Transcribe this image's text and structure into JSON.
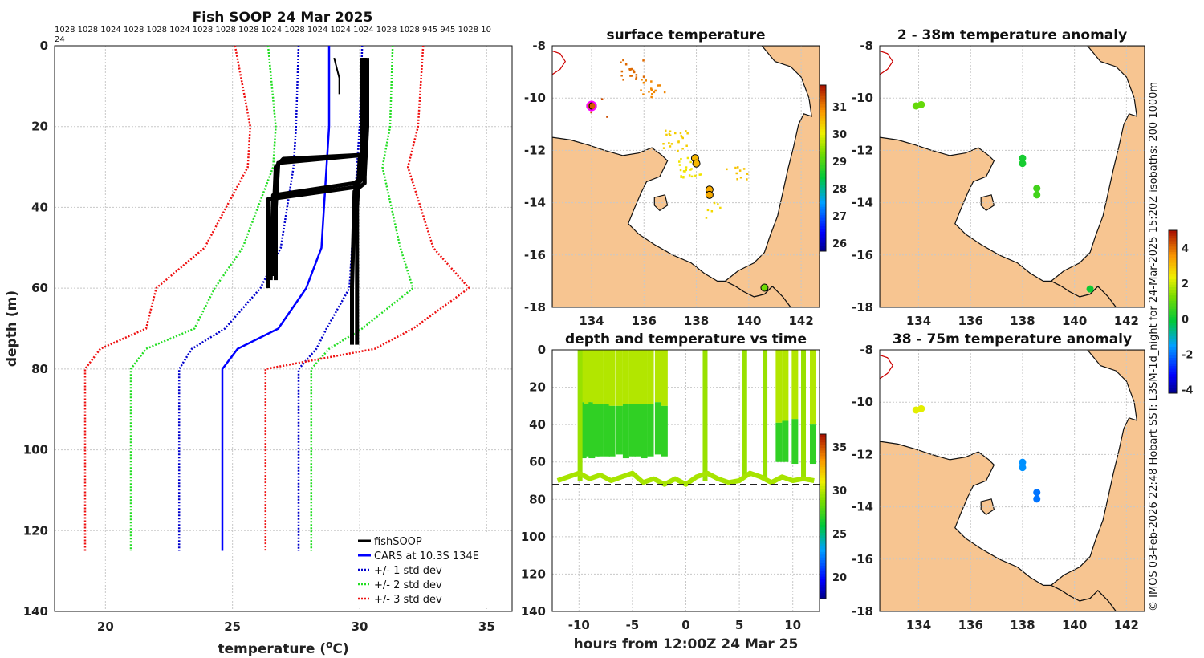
{
  "header": {
    "title": "Fish SOOP 24 Mar 2025",
    "pressure_line1": "1028 1028 1024 1028 1028 1024 1028 1028 1028 1024 1028 1024 1024 1024 1028 1028 945 945 1028 10",
    "pressure_line2": "24"
  },
  "credit": "© IMOS 03-Feb-2026 22:48 Hobart SST: L3SM-1d_night for 24-Mar-2025 15:20Z isobaths: 200  1000m",
  "colors": {
    "fishsoop": "#000000",
    "cars": "#0000ff",
    "std1": "#0000cc",
    "std2": "#22dd22",
    "std3": "#ee1111",
    "land": "#f7c591"
  },
  "chart_data": [
    {
      "id": "profile",
      "type": "line",
      "title": "Fish SOOP 24 Mar 2025",
      "xlabel_main": "temperature (",
      "xlabel_sup": "o",
      "xlabel_end": "C)",
      "ylabel": "depth (m)",
      "xlim": [
        18,
        36
      ],
      "ylim": [
        0,
        140
      ],
      "xticks": [
        20,
        25,
        30,
        35
      ],
      "yticks": [
        0,
        20,
        40,
        60,
        80,
        100,
        120,
        140
      ],
      "legend": [
        "fishSOOP",
        "CARS at 10.3S 134E",
        "+/- 1 std dev",
        "+/- 2 std dev",
        "+/- 3 std dev"
      ],
      "legend_position": "bottom-right",
      "depth_levels": [
        0,
        20,
        30,
        50,
        60,
        70,
        75,
        80,
        125
      ],
      "series": [
        {
          "name": "CARS at 10.3S 134E",
          "values": [
            28.8,
            28.8,
            28.7,
            28.5,
            27.9,
            26.8,
            25.2,
            24.6,
            24.6
          ]
        },
        {
          "name": "+1 std dev",
          "values": [
            30.1,
            30.0,
            29.9,
            29.7,
            29.6,
            28.7,
            28.3,
            27.6,
            27.6
          ]
        },
        {
          "name": "-1 std dev",
          "values": [
            27.6,
            27.5,
            27.4,
            26.9,
            26.1,
            24.7,
            23.4,
            22.9,
            22.9
          ]
        },
        {
          "name": "+2 std dev",
          "values": [
            31.3,
            31.2,
            30.9,
            31.6,
            32.1,
            30.1,
            28.8,
            28.1,
            28.1
          ]
        },
        {
          "name": "-2 std dev",
          "values": [
            26.4,
            26.7,
            26.6,
            25.4,
            24.3,
            23.5,
            21.6,
            21.0,
            21.0
          ]
        },
        {
          "name": "+3 std dev",
          "values": [
            32.5,
            32.3,
            31.9,
            32.9,
            34.3,
            32.1,
            30.6,
            26.3,
            26.3
          ]
        },
        {
          "name": "-3 std dev",
          "values": [
            25.1,
            25.7,
            25.6,
            23.9,
            22.0,
            21.6,
            19.8,
            19.2,
            19.2
          ]
        }
      ],
      "fishsoop_profiles": [
        {
          "temps": [
            30.1,
            30.1,
            30.1,
            30.0,
            29.9,
            29.9,
            29.9
          ],
          "depths": [
            3,
            20,
            26,
            28,
            40,
            60,
            74
          ]
        },
        {
          "temps": [
            30.2,
            30.2,
            30.1,
            27.0,
            26.7,
            26.6,
            26.6
          ],
          "depths": [
            3,
            20,
            27,
            28,
            30,
            45,
            57
          ]
        },
        {
          "temps": [
            30.1,
            30.2,
            30.2,
            26.8,
            26.7,
            26.7
          ],
          "depths": [
            3,
            20,
            27,
            29,
            40,
            58
          ]
        },
        {
          "temps": [
            30.2,
            30.2,
            30.1,
            29.8,
            26.4,
            26.4
          ],
          "depths": [
            3,
            20,
            33,
            35,
            38,
            60
          ]
        },
        {
          "temps": [
            30.3,
            30.3,
            30.2,
            29.8,
            26.6,
            26.5
          ],
          "depths": [
            3,
            20,
            32,
            34,
            37,
            58
          ]
        },
        {
          "temps": [
            30.2,
            30.2,
            30.2,
            29.8,
            29.7,
            29.7
          ],
          "depths": [
            3,
            20,
            34,
            36,
            60,
            74
          ]
        },
        {
          "temps": [
            29.0,
            29.2,
            29.2
          ],
          "depths": [
            3,
            8,
            12
          ]
        }
      ]
    },
    {
      "id": "sst_map",
      "type": "scatter",
      "title": "surface temperature",
      "xlim": [
        132.5,
        142.7
      ],
      "ylim": [
        -18,
        -8
      ],
      "xticks": [
        134,
        136,
        138,
        140,
        142
      ],
      "yticks": [
        -8,
        -10,
        -12,
        -14,
        -16,
        -18
      ],
      "colorbar": {
        "min": 25.7,
        "max": 31.8,
        "ticks": [
          26,
          27,
          28,
          29,
          30,
          31
        ]
      },
      "points": [
        {
          "lon": 133.95,
          "lat": -10.3,
          "value": 31.3
        },
        {
          "lon": 134.05,
          "lat": -10.3,
          "value": 31.3
        },
        {
          "lon": 137.95,
          "lat": -12.3,
          "value": 30.6
        },
        {
          "lon": 138.0,
          "lat": -12.5,
          "value": 30.6
        },
        {
          "lon": 138.5,
          "lat": -13.5,
          "value": 30.7
        },
        {
          "lon": 138.5,
          "lat": -13.7,
          "value": 30.7
        },
        {
          "lon": 140.6,
          "lat": -17.25,
          "value": 29.3
        }
      ]
    },
    {
      "id": "anom_2_38",
      "type": "scatter",
      "title": "2 - 38m temperature anomaly",
      "xlim": [
        132.5,
        142.7
      ],
      "ylim": [
        -18,
        -8
      ],
      "xticks": [
        134,
        136,
        138,
        140,
        142
      ],
      "yticks": [
        -8,
        -10,
        -12,
        -14,
        -16,
        -18
      ],
      "colorbar": {
        "min": -4.2,
        "max": 5.0,
        "ticks": [
          -4,
          -2,
          0,
          2,
          4
        ]
      },
      "points": [
        {
          "lon": 133.9,
          "lat": -10.3,
          "value": 1.1
        },
        {
          "lon": 134.1,
          "lat": -10.25,
          "value": 1.1
        },
        {
          "lon": 138.0,
          "lat": -12.3,
          "value": 0.2
        },
        {
          "lon": 138.0,
          "lat": -12.5,
          "value": 0.2
        },
        {
          "lon": 138.55,
          "lat": -13.45,
          "value": 0.7
        },
        {
          "lon": 138.55,
          "lat": -13.7,
          "value": 0.7
        },
        {
          "lon": 140.6,
          "lat": -17.3,
          "value": 0.1
        }
      ]
    },
    {
      "id": "anom_38_75",
      "type": "scatter",
      "title": "38 - 75m temperature anomaly",
      "xlim": [
        132.5,
        142.7
      ],
      "ylim": [
        -18,
        -8
      ],
      "xticks": [
        134,
        136,
        138,
        140,
        142
      ],
      "yticks": [
        -8,
        -10,
        -12,
        -14,
        -16,
        -18
      ],
      "points": [
        {
          "lon": 133.9,
          "lat": -10.3,
          "value": 2.3
        },
        {
          "lon": 134.1,
          "lat": -10.25,
          "value": 2.3
        },
        {
          "lon": 138.0,
          "lat": -12.3,
          "value": -1.6
        },
        {
          "lon": 138.0,
          "lat": -12.5,
          "value": -1.6
        },
        {
          "lon": 138.55,
          "lat": -13.45,
          "value": -1.9
        },
        {
          "lon": 138.55,
          "lat": -13.7,
          "value": -1.9
        }
      ]
    },
    {
      "id": "depth_time",
      "type": "scatter",
      "title": "depth and temperature vs time",
      "xlabel": "hours from 12:00Z 24 Mar 25",
      "xlim": [
        -12.5,
        12.5
      ],
      "ylim": [
        0,
        140
      ],
      "xticks": [
        -10,
        -5,
        0,
        5,
        10
      ],
      "yticks": [
        0,
        20,
        40,
        60,
        80,
        100,
        120,
        140
      ],
      "reference_depth": 72,
      "colorbar": {
        "min": 17.5,
        "max": 36.5,
        "ticks": [
          20,
          25,
          30,
          35
        ]
      },
      "casts": [
        {
          "t": -9.6,
          "bottom": 58,
          "thermocline": 28
        },
        {
          "t": -9.2,
          "bottom": 57,
          "thermocline": 29
        },
        {
          "t": -8.8,
          "bottom": 58,
          "thermocline": 28
        },
        {
          "t": -8.4,
          "bottom": 57,
          "thermocline": 29
        },
        {
          "t": -8.0,
          "bottom": 57,
          "thermocline": 29
        },
        {
          "t": -7.4,
          "bottom": 57,
          "thermocline": 29
        },
        {
          "t": -6.9,
          "bottom": 57,
          "thermocline": 30
        },
        {
          "t": -6.2,
          "bottom": 56,
          "thermocline": 30
        },
        {
          "t": -5.6,
          "bottom": 58,
          "thermocline": 29
        },
        {
          "t": -5.0,
          "bottom": 57,
          "thermocline": 29
        },
        {
          "t": -4.5,
          "bottom": 57,
          "thermocline": 29
        },
        {
          "t": -3.9,
          "bottom": 58,
          "thermocline": 29
        },
        {
          "t": -3.3,
          "bottom": 57,
          "thermocline": 29
        },
        {
          "t": -2.6,
          "bottom": 56,
          "thermocline": 28
        },
        {
          "t": -2.0,
          "bottom": 57,
          "thermocline": 30
        },
        {
          "t": 8.7,
          "bottom": 60,
          "thermocline": 39
        },
        {
          "t": 9.3,
          "bottom": 60,
          "thermocline": 38
        },
        {
          "t": 10.2,
          "bottom": 61,
          "thermocline": 37
        },
        {
          "t": 11.9,
          "bottom": 61,
          "thermocline": 40
        }
      ],
      "shallow_casts": [
        {
          "t": -9.9,
          "bottom": 70
        },
        {
          "t": 1.8,
          "bottom": 70
        },
        {
          "t": 5.5,
          "bottom": 68
        },
        {
          "t": 7.4,
          "bottom": 70
        },
        {
          "t": 11.0,
          "bottom": 70
        }
      ],
      "bottom_track": [
        {
          "t": -12.0,
          "d": 70
        },
        {
          "t": -11.0,
          "d": 68
        },
        {
          "t": -10.0,
          "d": 66
        },
        {
          "t": -9.0,
          "d": 69
        },
        {
          "t": -8.0,
          "d": 67
        },
        {
          "t": -7.0,
          "d": 70
        },
        {
          "t": -6.0,
          "d": 68
        },
        {
          "t": -5.0,
          "d": 66
        },
        {
          "t": -4.0,
          "d": 71
        },
        {
          "t": -3.0,
          "d": 69
        },
        {
          "t": -2.0,
          "d": 72
        },
        {
          "t": -1.0,
          "d": 69
        },
        {
          "t": 0.0,
          "d": 72
        },
        {
          "t": 1.0,
          "d": 68
        },
        {
          "t": 2.0,
          "d": 66
        },
        {
          "t": 3.0,
          "d": 69
        },
        {
          "t": 4.0,
          "d": 71
        },
        {
          "t": 5.0,
          "d": 70
        },
        {
          "t": 6.0,
          "d": 66
        },
        {
          "t": 7.0,
          "d": 68
        },
        {
          "t": 8.0,
          "d": 71
        },
        {
          "t": 9.0,
          "d": 68
        },
        {
          "t": 10.0,
          "d": 70
        },
        {
          "t": 11.0,
          "d": 69
        },
        {
          "t": 12.0,
          "d": 70
        }
      ]
    }
  ]
}
